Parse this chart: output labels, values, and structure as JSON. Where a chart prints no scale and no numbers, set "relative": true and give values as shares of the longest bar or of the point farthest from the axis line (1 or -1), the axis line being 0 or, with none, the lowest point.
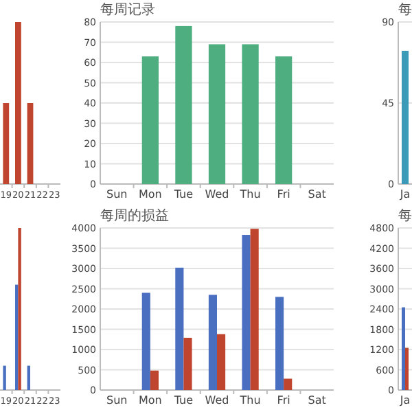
{
  "chart_data": [
    {
      "type": "bar",
      "relative": true,
      "categories": [
        "19",
        "20",
        "21",
        "22",
        "23"
      ],
      "series": [
        {
          "color": "#c0452e",
          "values": [
            0.5,
            1,
            0.5,
            null,
            null
          ]
        }
      ]
    },
    {
      "type": "bar",
      "title": "每周记录",
      "categories": [
        "Sun",
        "Mon",
        "Tue",
        "Wed",
        "Thu",
        "Fri",
        "Sat"
      ],
      "ylim": [
        0,
        80
      ],
      "yticks": [
        0,
        10,
        20,
        30,
        40,
        50,
        60,
        70,
        80
      ],
      "grid": "y",
      "series": [
        {
          "color": "#4fae7f",
          "values": [
            null,
            63,
            78,
            69,
            69,
            63,
            null
          ]
        }
      ]
    },
    {
      "type": "bar",
      "title": "每",
      "categories": [
        "Ja"
      ],
      "ylim": [
        0,
        90
      ],
      "yticks": [
        0,
        45,
        90
      ],
      "grid": "y",
      "series": [
        {
          "color": "#3a9ab8",
          "values": [
            74
          ]
        }
      ]
    },
    {
      "type": "bar",
      "relative": true,
      "categories": [
        "19",
        "20",
        "21",
        "22",
        "23"
      ],
      "series": [
        {
          "color": "#4a6fc0",
          "values": [
            0.15,
            0.65,
            0.15,
            null,
            null
          ]
        },
        {
          "color": "#c0452e",
          "values": [
            null,
            1,
            null,
            null,
            null
          ]
        }
      ]
    },
    {
      "type": "bar",
      "title": "每周的损益",
      "categories": [
        "Sun",
        "Mon",
        "Tue",
        "Wed",
        "Thu",
        "Fri",
        "Sat"
      ],
      "ylim": [
        0,
        4000
      ],
      "yticks": [
        0,
        500,
        1000,
        1500,
        2000,
        2500,
        3000,
        3500,
        4000
      ],
      "grid": "y",
      "series": [
        {
          "color": "#4a6fc0",
          "values": [
            null,
            2400,
            3020,
            2350,
            3830,
            2300,
            null
          ]
        },
        {
          "color": "#c0452e",
          "values": [
            null,
            480,
            1290,
            1380,
            3980,
            280,
            null
          ]
        }
      ]
    },
    {
      "type": "bar",
      "title": "每",
      "categories": [
        "Ja"
      ],
      "ylim": [
        0,
        4800
      ],
      "yticks": [
        0,
        600,
        1200,
        1800,
        2400,
        3000,
        3600,
        4200,
        4800
      ],
      "grid": "y",
      "series": [
        {
          "color": "#4a6fc0",
          "values": [
            2450
          ]
        },
        {
          "color": "#c0452e",
          "values": [
            1250
          ]
        }
      ]
    }
  ]
}
